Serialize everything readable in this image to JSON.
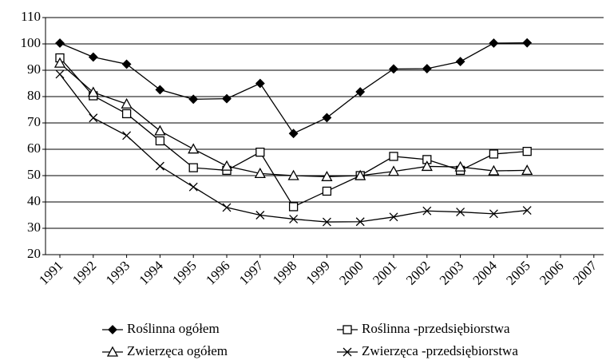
{
  "chart_data": {
    "type": "line",
    "categories": [
      "1991",
      "1992",
      "1993",
      "1994",
      "1995",
      "1996",
      "1997",
      "1998",
      "1999",
      "2000",
      "2001",
      "2002",
      "2003",
      "2004",
      "2005",
      "2006",
      "2007"
    ],
    "series": [
      {
        "name": "Roślinna ogółem",
        "color": "#000000",
        "marker": "diamond",
        "values": [
          100.3,
          95,
          92.3,
          82.6,
          79,
          79.2,
          85,
          66,
          72,
          81.8,
          90.5,
          90.6,
          93.3,
          100.3,
          100.4,
          null,
          null
        ]
      },
      {
        "name": "Roślinna -przedsiębiorstwa",
        "color": "#000000",
        "marker": "square",
        "values": [
          94.7,
          80.3,
          73.5,
          63.2,
          53,
          52,
          58.9,
          38.2,
          44.1,
          50,
          57.3,
          56.1,
          52,
          58.2,
          59.2,
          null,
          null
        ]
      },
      {
        "name": "Zwierzęca ogółem",
        "color": "#000000",
        "marker": "triangle",
        "values": [
          92.7,
          81.6,
          77.2,
          67,
          60.1,
          53.6,
          50.8,
          50,
          49.6,
          50,
          51.6,
          53.5,
          53.3,
          51.8,
          52,
          null,
          null
        ]
      },
      {
        "name": "Zwierzęca -przedsiębiorstwa",
        "color": "#000000",
        "marker": "x",
        "values": [
          88.5,
          71.9,
          65.2,
          53.6,
          45.7,
          37.9,
          35,
          33.5,
          32.4,
          32.5,
          34.3,
          36.6,
          36.2,
          35.5,
          36.8,
          null,
          null
        ]
      }
    ],
    "ylim": [
      20,
      110
    ],
    "yticks": [
      20,
      30,
      40,
      50,
      60,
      70,
      80,
      90,
      100,
      110
    ],
    "grid": true
  }
}
